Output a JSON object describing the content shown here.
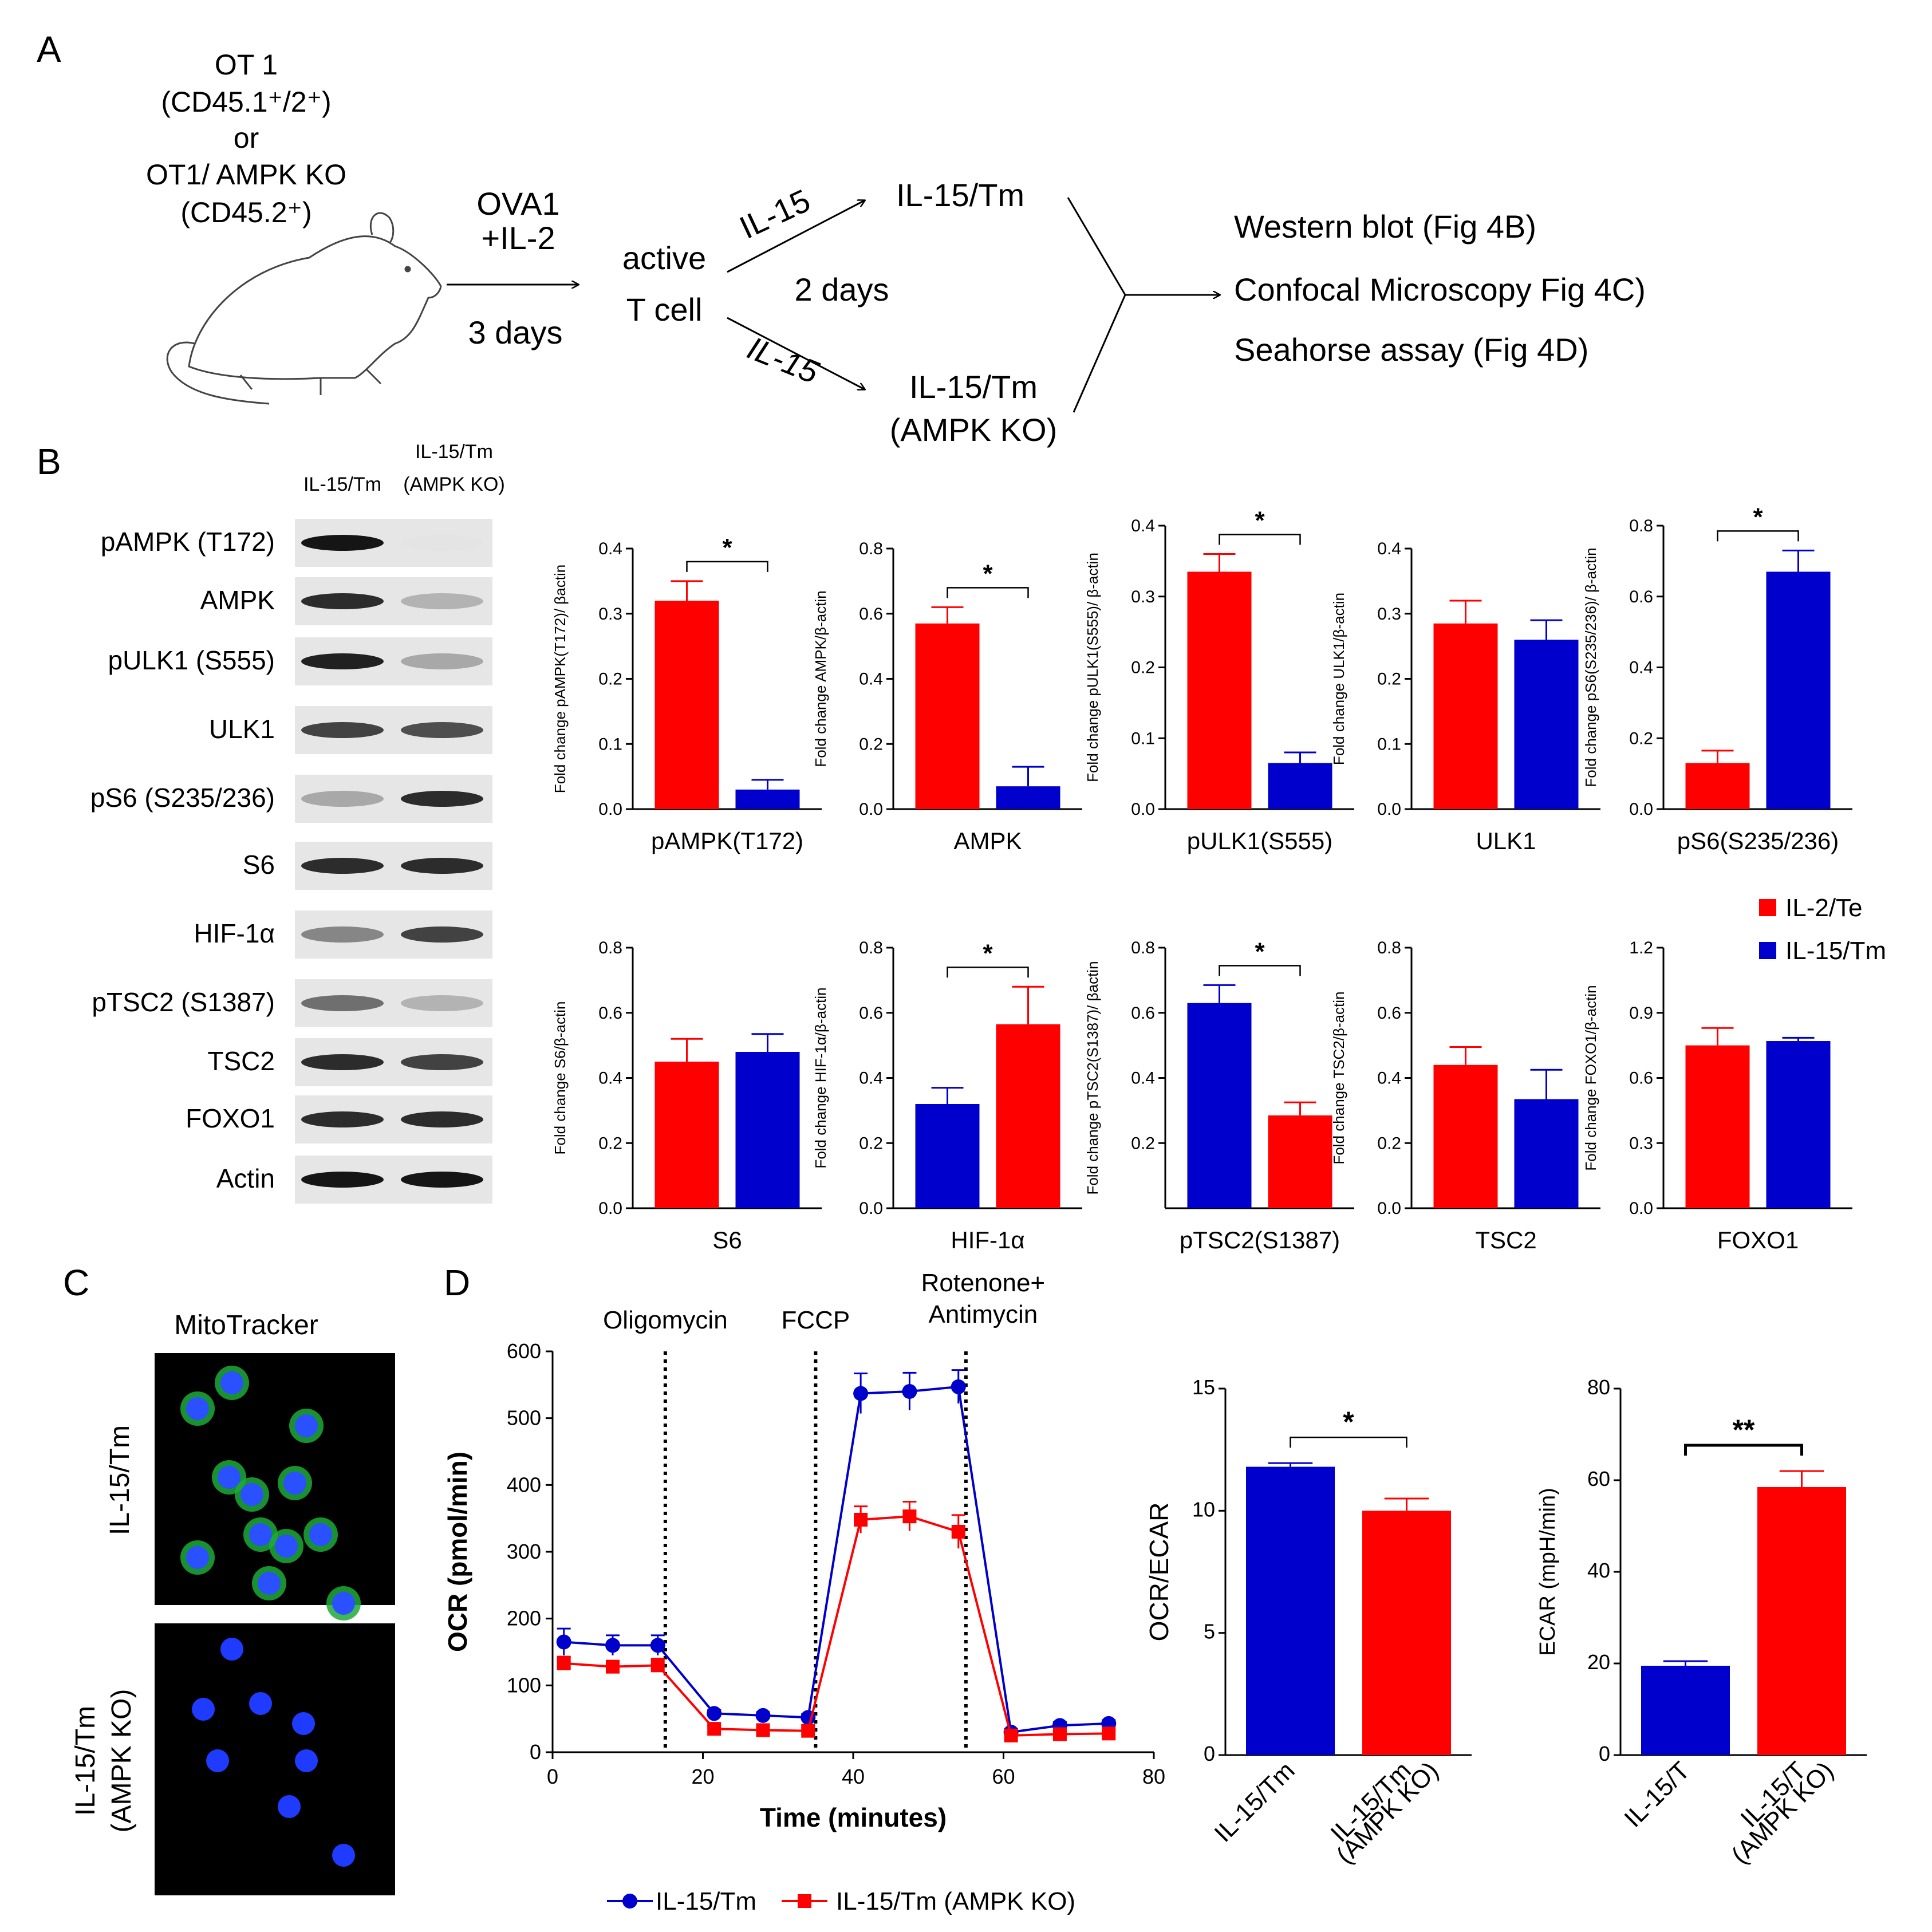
{
  "colors": {
    "red": "#ff0000",
    "blue": "#0000cc",
    "black": "#000000"
  },
  "panel_labels": {
    "a": "A",
    "b": "B",
    "c": "C",
    "d": "D"
  },
  "schematic": {
    "mouse_lines": [
      "OT 1",
      "(CD45.1⁺/2⁺)",
      "or",
      "OT1/ AMPK KO",
      "(CD45.2⁺)"
    ],
    "stim_1": "OVA1",
    "stim_2": "+IL-2",
    "days_3": "3 days",
    "active_1": "active",
    "active_2": "T cell",
    "il15_top": "IL-15",
    "days_2": "2 days",
    "il15_bottom": "IL-15",
    "result_top": "IL-15/Tm",
    "result_bottom_1": "IL-15/Tm",
    "result_bottom_2": "(AMPK  KO)",
    "assays": [
      "Western blot (Fig 4B)",
      "Confocal Microscopy Fig 4C)",
      "Seahorse assay (Fig 4D)"
    ]
  },
  "western": {
    "col1": "IL-15/Tm",
    "col2_1": "IL-15/Tm",
    "col2_2": "(AMPK KO)",
    "rows": [
      "pAMPK (T172)",
      "AMPK",
      "pULK1 (S555)",
      "ULK1",
      "pS6 (S235/236)",
      "S6",
      "HIF-1α",
      "pTSC2 (S1387)",
      "TSC2",
      "FOXO1",
      "Actin"
    ],
    "band_intensity": [
      [
        0.95,
        0.03
      ],
      [
        0.85,
        0.25
      ],
      [
        0.9,
        0.3
      ],
      [
        0.75,
        0.7
      ],
      [
        0.3,
        0.85
      ],
      [
        0.85,
        0.85
      ],
      [
        0.45,
        0.75
      ],
      [
        0.55,
        0.25
      ],
      [
        0.85,
        0.75
      ],
      [
        0.85,
        0.85
      ],
      [
        0.95,
        0.95
      ]
    ]
  },
  "legend_b": {
    "il2": "IL-2/Te",
    "il15": "IL-15/Tm"
  },
  "mito": {
    "title": "MitoTracker",
    "label_top": "IL-15/Tm",
    "label_bottom_1": "IL-15/Tm",
    "label_bottom_2": "(AMPK KO)"
  },
  "chart_data": [
    {
      "type": "bar",
      "panel": "B",
      "title": "",
      "xlabel": "pAMPK(T172)",
      "ylabel": "Fold change pAMPK(T172)/ βactin",
      "ylim": [
        0,
        0.4
      ],
      "yticks": [
        "0.0",
        "0.1",
        "0.2",
        "0.3",
        "0.4"
      ],
      "series": [
        {
          "name": "IL-2/Te",
          "color": "red",
          "value": 0.32,
          "error": 0.03
        },
        {
          "name": "IL-15/Tm",
          "color": "blue",
          "value": 0.03,
          "error": 0.015
        }
      ],
      "significance": "*"
    },
    {
      "type": "bar",
      "panel": "B",
      "title": "",
      "xlabel": "AMPK",
      "ylabel": "Fold change AMPK/β-actin",
      "ylim": [
        0,
        0.8
      ],
      "yticks": [
        "0.0",
        "0.2",
        "0.4",
        "0.6",
        "0.8"
      ],
      "series": [
        {
          "name": "IL-2/Te",
          "color": "red",
          "value": 0.57,
          "error": 0.05
        },
        {
          "name": "IL-15/Tm",
          "color": "blue",
          "value": 0.07,
          "error": 0.06
        }
      ],
      "significance": "*"
    },
    {
      "type": "bar",
      "panel": "B",
      "title": "",
      "xlabel": "pULK1(S555)",
      "ylabel": "Fold change pULK1(S555)/ β-actin",
      "ylim": [
        0,
        0.4
      ],
      "yticks": [
        "0.0",
        "0.1",
        "0.2",
        "0.3",
        "0.4"
      ],
      "series": [
        {
          "name": "IL-2/Te",
          "color": "red",
          "value": 0.335,
          "error": 0.025
        },
        {
          "name": "IL-15/Tm",
          "color": "blue",
          "value": 0.065,
          "error": 0.015
        }
      ],
      "significance": "*"
    },
    {
      "type": "bar",
      "panel": "B",
      "title": "",
      "xlabel": "ULK1",
      "ylabel": "Fold change ULK1/β-actin",
      "ylim": [
        0,
        0.4
      ],
      "yticks": [
        "0.0",
        "0.1",
        "0.2",
        "0.3",
        "0.4"
      ],
      "series": [
        {
          "name": "IL-2/Te",
          "color": "red",
          "value": 0.285,
          "error": 0.035
        },
        {
          "name": "IL-15/Tm",
          "color": "blue",
          "value": 0.26,
          "error": 0.03
        }
      ],
      "significance": ""
    },
    {
      "type": "bar",
      "panel": "B",
      "title": "",
      "xlabel": "pS6(S235/236)",
      "ylabel": "Fold change pS6(S235/236)/ β-actin",
      "ylim": [
        0,
        0.8
      ],
      "yticks": [
        "0.0",
        "0.2",
        "0.4",
        "0.6",
        "0.8"
      ],
      "series": [
        {
          "name": "IL-2/Te",
          "color": "red",
          "value": 0.13,
          "error": 0.035
        },
        {
          "name": "IL-15/Tm",
          "color": "blue",
          "value": 0.67,
          "error": 0.06
        }
      ],
      "significance": "*"
    },
    {
      "type": "bar",
      "panel": "B",
      "title": "",
      "xlabel": "S6",
      "ylabel": "Fold change S6/β-actin",
      "ylim": [
        0,
        0.8
      ],
      "yticks": [
        "0.0",
        "0.2",
        "0.4",
        "0.6",
        "0.8"
      ],
      "series": [
        {
          "name": "IL-2/Te",
          "color": "red",
          "value": 0.45,
          "error": 0.07
        },
        {
          "name": "IL-15/Tm",
          "color": "blue",
          "value": 0.48,
          "error": 0.055
        }
      ],
      "significance": ""
    },
    {
      "type": "bar",
      "panel": "B",
      "title": "",
      "xlabel": "HIF-1α",
      "ylabel": "Fold change HIF-1α/β-actin",
      "ylim": [
        0,
        0.8
      ],
      "yticks": [
        "0.0",
        "0.2",
        "0.4",
        "0.6",
        "0.8"
      ],
      "series": [
        {
          "name": "IL-15/Tm",
          "color": "blue",
          "value": 0.32,
          "error": 0.05
        },
        {
          "name": "IL-2/Te",
          "color": "red",
          "value": 0.565,
          "error": 0.115
        }
      ],
      "significance": "*"
    },
    {
      "type": "bar",
      "panel": "B",
      "title": "",
      "xlabel": "pTSC2(S1387)",
      "ylabel": "Fold change pTSC2(S1387)/ βactin",
      "ylim": [
        0,
        0.8
      ],
      "yticks": [
        "0.2",
        "0.4",
        "0.6",
        "0.8"
      ],
      "series": [
        {
          "name": "IL-15/Tm",
          "color": "blue",
          "value": 0.63,
          "error": 0.055
        },
        {
          "name": "IL-2/Te",
          "color": "red",
          "value": 0.285,
          "error": 0.04
        }
      ],
      "significance": "*"
    },
    {
      "type": "bar",
      "panel": "B",
      "title": "",
      "xlabel": "TSC2",
      "ylabel": "Fold change TSC2/β-actin",
      "ylim": [
        0,
        0.8
      ],
      "yticks": [
        "0.0",
        "0.2",
        "0.4",
        "0.6",
        "0.8"
      ],
      "series": [
        {
          "name": "IL-2/Te",
          "color": "red",
          "value": 0.44,
          "error": 0.055
        },
        {
          "name": "IL-15/Tm",
          "color": "blue",
          "value": 0.335,
          "error": 0.09
        }
      ],
      "significance": ""
    },
    {
      "type": "bar",
      "panel": "B",
      "title": "",
      "xlabel": "FOXO1",
      "ylabel": "Fold change FOXO1/β-actin",
      "ylim": [
        0,
        1.2
      ],
      "yticks": [
        "0.0",
        "0.3",
        "0.6",
        "0.9",
        "1.2"
      ],
      "series": [
        {
          "name": "IL-2/Te",
          "color": "red",
          "value": 0.75,
          "error": 0.08
        },
        {
          "name": "IL-15/Tm",
          "color": "blue",
          "value": 0.77,
          "error": 0.015
        }
      ],
      "significance": ""
    },
    {
      "type": "line",
      "panel": "D",
      "title": "",
      "xlabel": "Time (minutes)",
      "ylabel": "OCR (pmol/min)",
      "xlim": [
        0,
        80
      ],
      "ylim": [
        0,
        600
      ],
      "xticks": [
        "0",
        "20",
        "40",
        "60",
        "80"
      ],
      "yticks": [
        "0",
        "100",
        "200",
        "300",
        "400",
        "500",
        "600"
      ],
      "x": [
        1.5,
        8,
        14,
        21.5,
        28,
        34,
        41,
        47.5,
        54,
        61,
        67.5,
        74
      ],
      "series": [
        {
          "name": "IL-15/Tm",
          "color": "blue",
          "values": [
            165,
            160,
            160,
            58,
            55,
            52,
            537,
            540,
            547,
            30,
            40,
            43
          ],
          "error": [
            20,
            15,
            15,
            5,
            5,
            5,
            30,
            28,
            25,
            5,
            5,
            5
          ]
        },
        {
          "name": "IL-15/Tm  (AMPK KO)",
          "color": "red",
          "values": [
            133,
            128,
            130,
            35,
            33,
            32,
            348,
            353,
            330,
            25,
            27,
            28
          ],
          "error": [
            10,
            8,
            10,
            5,
            5,
            5,
            20,
            22,
            25,
            5,
            5,
            5
          ]
        }
      ],
      "annotations": [
        {
          "x": 15,
          "label": "Oligomycin"
        },
        {
          "x": 35,
          "label": "FCCP"
        },
        {
          "x": 55,
          "label_1": "Rotenone+",
          "label_2": "Antimycin"
        }
      ]
    },
    {
      "type": "bar",
      "panel": "D",
      "title": "",
      "xlabel": "",
      "ylabel": "OCR/ECAR",
      "ylim": [
        0,
        15
      ],
      "yticks": [
        "0",
        "5",
        "10",
        "15"
      ],
      "categories": [
        "IL-15/Tm",
        "IL-15/Tm (AMPK KO)"
      ],
      "category_lines": [
        [
          "IL-15/Tm"
        ],
        [
          "IL-15/Tm",
          "(AMPK KO)"
        ]
      ],
      "series": [
        {
          "name": "IL-15/Tm",
          "color": "blue",
          "value": 11.8,
          "error": 0.15
        },
        {
          "name": "IL-15/Tm (AMPK KO)",
          "color": "red",
          "value": 10.0,
          "error": 0.5
        }
      ],
      "significance": "*"
    },
    {
      "type": "bar",
      "panel": "D",
      "title": "",
      "xlabel": "",
      "ylabel": "ECAR (mpH/min)",
      "ylim": [
        0,
        80
      ],
      "yticks": [
        "0",
        "20",
        "40",
        "60",
        "80"
      ],
      "categories": [
        "IL-15/T",
        "IL-15/T (AMPK KO)"
      ],
      "category_lines": [
        [
          "IL-15/T"
        ],
        [
          "IL-15/T",
          "(AMPK KO)"
        ]
      ],
      "series": [
        {
          "name": "IL-15/T",
          "color": "blue",
          "value": 19.5,
          "error": 1
        },
        {
          "name": "IL-15/T (AMPK KO)",
          "color": "red",
          "value": 58.5,
          "error": 3.5
        }
      ],
      "significance": "**"
    }
  ]
}
